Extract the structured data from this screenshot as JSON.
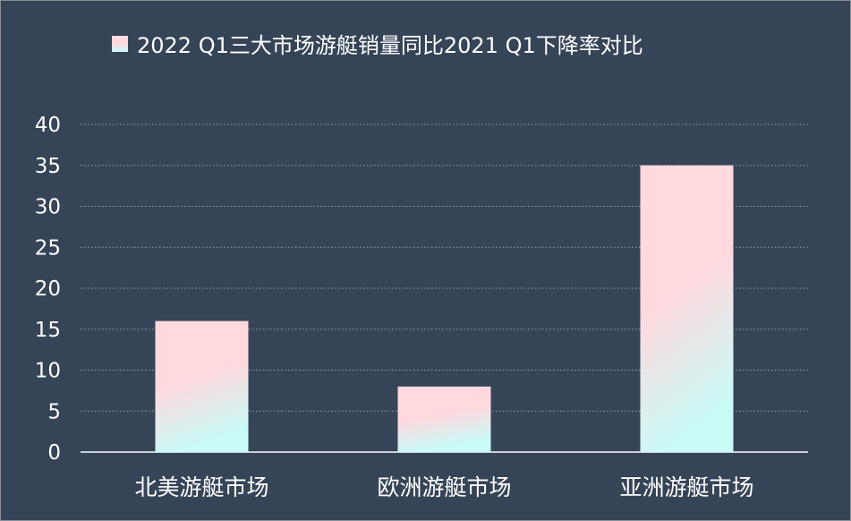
{
  "chart_data": {
    "type": "bar",
    "title": "",
    "categories": [
      "北美游艇市场",
      "欧洲游艇市场",
      "亚洲游艇市场"
    ],
    "series": [
      {
        "name": "2022 Q1三大市场游艇销量同比2021 Q1下降率对比",
        "values": [
          16,
          8,
          35
        ]
      }
    ],
    "ylim": [
      0,
      40
    ],
    "yticks": [
      0,
      5,
      10,
      15,
      20,
      25,
      30,
      35,
      40
    ],
    "grid": true,
    "legend": "top-center",
    "colors": {
      "background": "#364457",
      "bar_top": "#ffd9de",
      "bar_bottom": "#c9fbf7",
      "grid": "#9aa3ad"
    }
  }
}
